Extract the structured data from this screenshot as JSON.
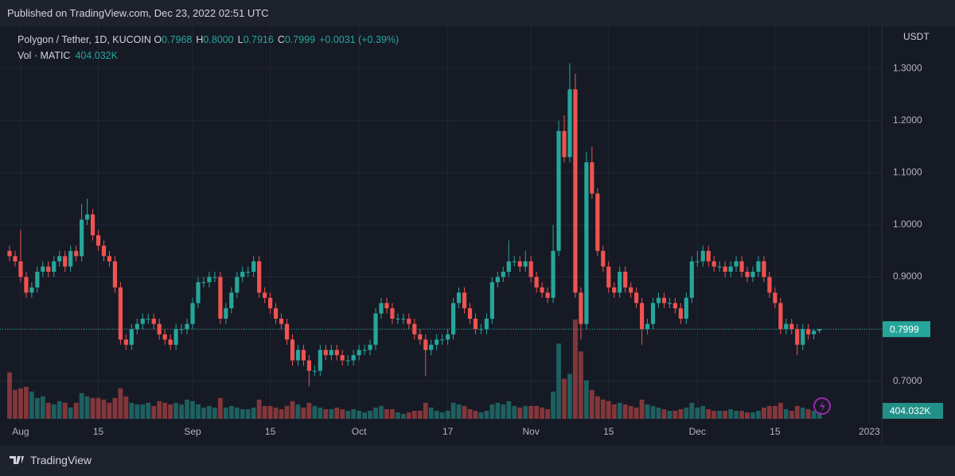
{
  "published": "Published on TradingView.com, Dec 23, 2022 02:51 UTC",
  "footer": "TradingView",
  "chart_data": {
    "type": "candlestick",
    "symbol": "Polygon / Tether, 1D, KUCOIN",
    "ohlc_legend": [
      {
        "key": "O",
        "value": "0.7968"
      },
      {
        "key": "H",
        "value": "0.8000"
      },
      {
        "key": "L",
        "value": "0.7916"
      },
      {
        "key": "C",
        "value": "0.7999"
      }
    ],
    "change": "+0.0031 (+0.39%)",
    "volume_title": "Vol · MATIC",
    "volume_last": "404.032K",
    "y_axis_label": "USDT",
    "up_color": "#26a69a",
    "down_color": "#ef5350",
    "grid": true,
    "ylim": [
      0.628,
      1.381
    ],
    "yticks": [
      {
        "value": 0.7,
        "label": "0.7000"
      },
      {
        "value": 0.8,
        "label": "0.8000"
      },
      {
        "value": 0.9,
        "label": "0.9000"
      },
      {
        "value": 1.0,
        "label": "1.0000"
      },
      {
        "value": 1.1,
        "label": "1.1000"
      },
      {
        "value": 1.2,
        "label": "1.2000"
      },
      {
        "value": 1.3,
        "label": "1.3000"
      }
    ],
    "xticks": [
      {
        "value": "2022-08-01",
        "label": "Aug"
      },
      {
        "value": "2022-08-15",
        "label": "15"
      },
      {
        "value": "2022-09-01",
        "label": "Sep"
      },
      {
        "value": "2022-09-15",
        "label": "15"
      },
      {
        "value": "2022-10-01",
        "label": "Oct"
      },
      {
        "value": "2022-10-17",
        "label": "17"
      },
      {
        "value": "2022-11-01",
        "label": "Nov"
      },
      {
        "value": "2022-11-15",
        "label": "15"
      },
      {
        "value": "2022-12-01",
        "label": "Dec"
      },
      {
        "value": "2022-12-15",
        "label": "15"
      },
      {
        "value": "2023-01-01",
        "label": "2023"
      }
    ],
    "x": [
      "2022-07-30",
      "2022-07-31",
      "2022-08-01",
      "2022-08-02",
      "2022-08-03",
      "2022-08-04",
      "2022-08-05",
      "2022-08-06",
      "2022-08-07",
      "2022-08-08",
      "2022-08-09",
      "2022-08-10",
      "2022-08-11",
      "2022-08-12",
      "2022-08-13",
      "2022-08-14",
      "2022-08-15",
      "2022-08-16",
      "2022-08-17",
      "2022-08-18",
      "2022-08-19",
      "2022-08-20",
      "2022-08-21",
      "2022-08-22",
      "2022-08-23",
      "2022-08-24",
      "2022-08-25",
      "2022-08-26",
      "2022-08-27",
      "2022-08-28",
      "2022-08-29",
      "2022-08-30",
      "2022-08-31",
      "2022-09-01",
      "2022-09-02",
      "2022-09-03",
      "2022-09-04",
      "2022-09-05",
      "2022-09-06",
      "2022-09-07",
      "2022-09-08",
      "2022-09-09",
      "2022-09-10",
      "2022-09-11",
      "2022-09-12",
      "2022-09-13",
      "2022-09-14",
      "2022-09-15",
      "2022-09-16",
      "2022-09-17",
      "2022-09-18",
      "2022-09-19",
      "2022-09-20",
      "2022-09-21",
      "2022-09-22",
      "2022-09-23",
      "2022-09-24",
      "2022-09-25",
      "2022-09-26",
      "2022-09-27",
      "2022-09-28",
      "2022-09-29",
      "2022-09-30",
      "2022-10-01",
      "2022-10-02",
      "2022-10-03",
      "2022-10-04",
      "2022-10-05",
      "2022-10-06",
      "2022-10-07",
      "2022-10-08",
      "2022-10-09",
      "2022-10-10",
      "2022-10-11",
      "2022-10-12",
      "2022-10-13",
      "2022-10-14",
      "2022-10-15",
      "2022-10-16",
      "2022-10-17",
      "2022-10-18",
      "2022-10-19",
      "2022-10-20",
      "2022-10-21",
      "2022-10-22",
      "2022-10-23",
      "2022-10-24",
      "2022-10-25",
      "2022-10-26",
      "2022-10-27",
      "2022-10-28",
      "2022-10-29",
      "2022-10-30",
      "2022-10-31",
      "2022-11-01",
      "2022-11-02",
      "2022-11-03",
      "2022-11-04",
      "2022-11-05",
      "2022-11-06",
      "2022-11-07",
      "2022-11-08",
      "2022-11-09",
      "2022-11-10",
      "2022-11-11",
      "2022-11-12",
      "2022-11-13",
      "2022-11-14",
      "2022-11-15",
      "2022-11-16",
      "2022-11-17",
      "2022-11-18",
      "2022-11-19",
      "2022-11-20",
      "2022-11-21",
      "2022-11-22",
      "2022-11-23",
      "2022-11-24",
      "2022-11-25",
      "2022-11-26",
      "2022-11-27",
      "2022-11-28",
      "2022-11-29",
      "2022-11-30",
      "2022-12-01",
      "2022-12-02",
      "2022-12-03",
      "2022-12-04",
      "2022-12-05",
      "2022-12-06",
      "2022-12-07",
      "2022-12-08",
      "2022-12-09",
      "2022-12-10",
      "2022-12-11",
      "2022-12-12",
      "2022-12-13",
      "2022-12-14",
      "2022-12-15",
      "2022-12-16",
      "2022-12-17",
      "2022-12-18",
      "2022-12-19",
      "2022-12-20",
      "2022-12-21",
      "2022-12-22",
      "2022-12-23"
    ],
    "open": [
      0.95,
      0.94,
      0.93,
      0.9,
      0.87,
      0.88,
      0.91,
      0.92,
      0.91,
      0.93,
      0.94,
      0.92,
      0.95,
      0.94,
      1.01,
      1.02,
      0.98,
      0.96,
      0.94,
      0.93,
      0.88,
      0.78,
      0.77,
      0.8,
      0.81,
      0.82,
      0.82,
      0.81,
      0.79,
      0.78,
      0.77,
      0.8,
      0.8,
      0.81,
      0.85,
      0.89,
      0.89,
      0.9,
      0.9,
      0.82,
      0.84,
      0.87,
      0.9,
      0.91,
      0.91,
      0.93,
      0.87,
      0.86,
      0.84,
      0.82,
      0.81,
      0.78,
      0.74,
      0.76,
      0.74,
      0.72,
      0.72,
      0.76,
      0.75,
      0.76,
      0.75,
      0.74,
      0.74,
      0.75,
      0.76,
      0.76,
      0.77,
      0.83,
      0.85,
      0.84,
      0.82,
      0.82,
      0.82,
      0.81,
      0.79,
      0.78,
      0.76,
      0.77,
      0.78,
      0.78,
      0.79,
      0.85,
      0.87,
      0.84,
      0.82,
      0.8,
      0.8,
      0.82,
      0.89,
      0.9,
      0.91,
      0.93,
      0.93,
      0.92,
      0.93,
      0.9,
      0.88,
      0.87,
      0.86,
      0.95,
      1.18,
      1.13,
      1.26,
      0.87,
      0.81,
      1.12,
      1.06,
      0.95,
      0.92,
      0.88,
      0.87,
      0.91,
      0.88,
      0.87,
      0.85,
      0.8,
      0.81,
      0.85,
      0.86,
      0.85,
      0.85,
      0.84,
      0.82,
      0.86,
      0.93,
      0.93,
      0.95,
      0.93,
      0.92,
      0.92,
      0.91,
      0.92,
      0.93,
      0.91,
      0.9,
      0.91,
      0.93,
      0.9,
      0.87,
      0.85,
      0.8,
      0.81,
      0.8,
      0.77,
      0.8,
      0.79,
      0.7968
    ],
    "high": [
      0.96,
      0.95,
      0.99,
      0.91,
      0.89,
      0.92,
      0.93,
      0.93,
      0.94,
      0.95,
      0.95,
      0.96,
      0.96,
      1.04,
      1.05,
      1.03,
      0.99,
      0.97,
      0.95,
      0.94,
      0.89,
      0.79,
      0.81,
      0.82,
      0.83,
      0.83,
      0.83,
      0.82,
      0.8,
      0.79,
      0.81,
      0.81,
      0.82,
      0.86,
      0.9,
      0.9,
      0.91,
      0.91,
      0.91,
      0.85,
      0.88,
      0.91,
      0.92,
      0.92,
      0.94,
      0.94,
      0.88,
      0.87,
      0.85,
      0.83,
      0.82,
      0.79,
      0.77,
      0.77,
      0.75,
      0.73,
      0.77,
      0.77,
      0.77,
      0.77,
      0.76,
      0.75,
      0.76,
      0.77,
      0.77,
      0.78,
      0.84,
      0.86,
      0.86,
      0.85,
      0.83,
      0.83,
      0.83,
      0.82,
      0.8,
      0.79,
      0.78,
      0.79,
      0.79,
      0.8,
      0.86,
      0.88,
      0.88,
      0.85,
      0.83,
      0.81,
      0.83,
      0.9,
      0.91,
      0.92,
      0.97,
      0.94,
      0.94,
      0.95,
      0.94,
      0.91,
      0.89,
      0.88,
      1.0,
      1.2,
      1.21,
      1.31,
      1.29,
      0.88,
      1.14,
      1.15,
      1.07,
      0.96,
      0.93,
      0.89,
      0.92,
      0.92,
      0.89,
      0.88,
      0.86,
      0.82,
      0.86,
      0.87,
      0.87,
      0.86,
      0.86,
      0.85,
      0.87,
      0.94,
      0.95,
      0.96,
      0.96,
      0.94,
      0.93,
      0.93,
      0.93,
      0.94,
      0.94,
      0.92,
      0.92,
      0.94,
      0.94,
      0.91,
      0.88,
      0.86,
      0.82,
      0.82,
      0.81,
      0.81,
      0.81,
      0.8,
      0.8
    ],
    "low": [
      0.93,
      0.92,
      0.89,
      0.86,
      0.86,
      0.87,
      0.9,
      0.9,
      0.9,
      0.92,
      0.91,
      0.91,
      0.93,
      0.93,
      1.0,
      0.97,
      0.95,
      0.93,
      0.92,
      0.87,
      0.77,
      0.76,
      0.76,
      0.79,
      0.8,
      0.81,
      0.8,
      0.78,
      0.77,
      0.76,
      0.76,
      0.79,
      0.79,
      0.8,
      0.84,
      0.88,
      0.88,
      0.89,
      0.81,
      0.81,
      0.83,
      0.86,
      0.89,
      0.9,
      0.9,
      0.86,
      0.85,
      0.83,
      0.81,
      0.8,
      0.77,
      0.73,
      0.73,
      0.73,
      0.69,
      0.71,
      0.71,
      0.74,
      0.74,
      0.74,
      0.73,
      0.73,
      0.73,
      0.74,
      0.75,
      0.75,
      0.76,
      0.82,
      0.83,
      0.81,
      0.81,
      0.81,
      0.8,
      0.78,
      0.77,
      0.71,
      0.75,
      0.76,
      0.77,
      0.77,
      0.78,
      0.84,
      0.83,
      0.81,
      0.79,
      0.79,
      0.79,
      0.81,
      0.88,
      0.89,
      0.9,
      0.92,
      0.91,
      0.91,
      0.89,
      0.87,
      0.86,
      0.85,
      0.85,
      0.94,
      1.12,
      1.12,
      0.86,
      0.78,
      0.8,
      1.05,
      0.94,
      0.91,
      0.87,
      0.86,
      0.86,
      0.87,
      0.86,
      0.84,
      0.77,
      0.79,
      0.8,
      0.84,
      0.84,
      0.84,
      0.83,
      0.81,
      0.81,
      0.85,
      0.92,
      0.92,
      0.92,
      0.91,
      0.91,
      0.9,
      0.9,
      0.91,
      0.9,
      0.89,
      0.89,
      0.9,
      0.89,
      0.86,
      0.84,
      0.79,
      0.79,
      0.79,
      0.75,
      0.76,
      0.78,
      0.78,
      0.7916
    ],
    "close": [
      0.94,
      0.93,
      0.9,
      0.87,
      0.88,
      0.91,
      0.92,
      0.91,
      0.93,
      0.94,
      0.92,
      0.95,
      0.94,
      1.01,
      1.02,
      0.98,
      0.96,
      0.94,
      0.93,
      0.88,
      0.78,
      0.77,
      0.8,
      0.81,
      0.82,
      0.82,
      0.81,
      0.79,
      0.78,
      0.77,
      0.8,
      0.8,
      0.81,
      0.85,
      0.89,
      0.89,
      0.9,
      0.9,
      0.82,
      0.84,
      0.87,
      0.9,
      0.91,
      0.91,
      0.93,
      0.87,
      0.86,
      0.84,
      0.82,
      0.81,
      0.78,
      0.74,
      0.76,
      0.74,
      0.72,
      0.72,
      0.76,
      0.75,
      0.76,
      0.75,
      0.74,
      0.74,
      0.75,
      0.76,
      0.76,
      0.77,
      0.83,
      0.85,
      0.84,
      0.82,
      0.82,
      0.82,
      0.81,
      0.79,
      0.78,
      0.76,
      0.77,
      0.78,
      0.78,
      0.79,
      0.85,
      0.87,
      0.84,
      0.82,
      0.8,
      0.8,
      0.82,
      0.89,
      0.9,
      0.91,
      0.93,
      0.93,
      0.92,
      0.93,
      0.9,
      0.88,
      0.87,
      0.86,
      0.95,
      1.18,
      1.13,
      1.26,
      0.87,
      0.81,
      1.12,
      1.06,
      0.95,
      0.92,
      0.88,
      0.87,
      0.91,
      0.88,
      0.87,
      0.85,
      0.8,
      0.81,
      0.85,
      0.86,
      0.85,
      0.85,
      0.84,
      0.82,
      0.86,
      0.93,
      0.93,
      0.95,
      0.93,
      0.92,
      0.92,
      0.91,
      0.92,
      0.93,
      0.91,
      0.9,
      0.91,
      0.93,
      0.9,
      0.87,
      0.85,
      0.8,
      0.81,
      0.8,
      0.77,
      0.8,
      0.79,
      0.7968,
      0.7999
    ],
    "volume": [
      2900000,
      1800000,
      1900000,
      2000000,
      1700000,
      1300000,
      1400000,
      1000000,
      900000,
      1100000,
      1000000,
      700000,
      1000000,
      1600000,
      1400000,
      1300000,
      1300000,
      1200000,
      1000000,
      1300000,
      1900000,
      1400000,
      1000000,
      900000,
      900000,
      1000000,
      800000,
      1100000,
      1000000,
      900000,
      1000000,
      900000,
      1200000,
      1100000,
      900000,
      700000,
      800000,
      700000,
      1300000,
      700000,
      800000,
      700000,
      600000,
      600000,
      700000,
      1200000,
      800000,
      800000,
      700000,
      600000,
      800000,
      1100000,
      900000,
      700000,
      1000000,
      800000,
      700000,
      600000,
      600000,
      700000,
      600000,
      500000,
      600000,
      500000,
      400000,
      500000,
      700000,
      800000,
      600000,
      600000,
      400000,
      300000,
      400000,
      500000,
      500000,
      1000000,
      700000,
      500000,
      400000,
      500000,
      1000000,
      900000,
      800000,
      600000,
      500000,
      400000,
      500000,
      900000,
      1000000,
      900000,
      1100000,
      800000,
      700000,
      800000,
      800000,
      800000,
      700000,
      600000,
      1700000,
      4700000,
      2500000,
      2800000,
      6200000,
      4200000,
      2400000,
      1800000,
      1400000,
      1200000,
      1100000,
      900000,
      1000000,
      900000,
      800000,
      700000,
      1200000,
      900000,
      800000,
      700000,
      600000,
      500000,
      500000,
      600000,
      700000,
      1000000,
      700000,
      800000,
      600000,
      500000,
      500000,
      500000,
      600000,
      500000,
      500000,
      400000,
      400000,
      500000,
      700000,
      800000,
      800000,
      1000000,
      600000,
      500000,
      800000,
      700000,
      600000,
      500000,
      404032
    ]
  }
}
